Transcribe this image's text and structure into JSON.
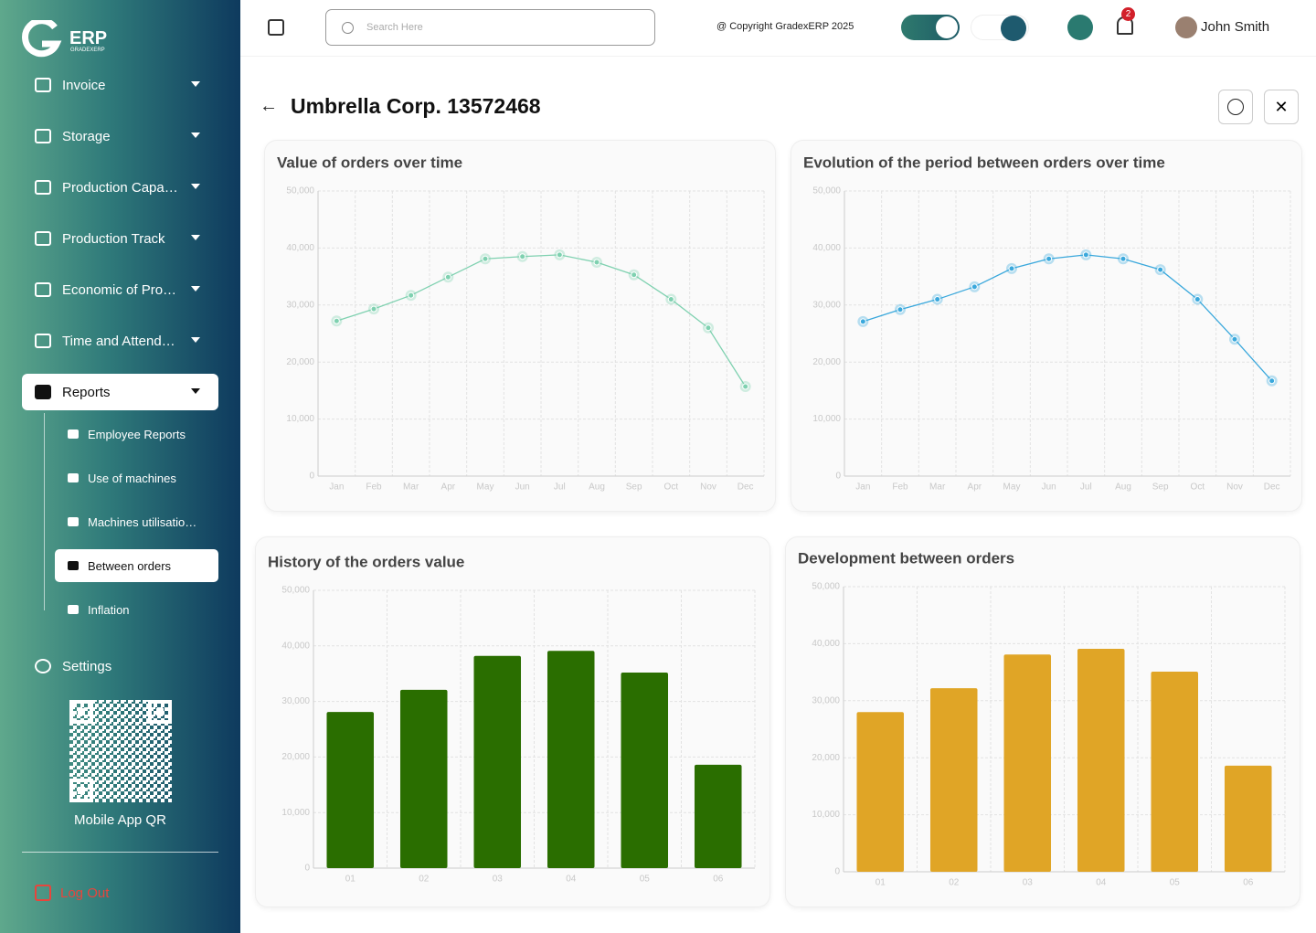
{
  "logo": {
    "name": "ERP",
    "subtitle": "GRADEXERP"
  },
  "sidebar": {
    "menu": [
      "Invoice",
      "Storage",
      "Production Capa…",
      "Production Track",
      "Economic of Pro…",
      "Time and Attend…",
      "Reports"
    ],
    "submenu": [
      "Employee Reports",
      "Use of machines",
      "Machines utilisatio…",
      "Between orders",
      "Inflation"
    ],
    "settings": "Settings",
    "qr_label": "Mobile App QR",
    "logout": "Log Out"
  },
  "header": {
    "search_placeholder": "Search Here",
    "copyright": "@ Copyright GradexERP 2025",
    "notifications": "2",
    "user": "John Smith"
  },
  "page": {
    "title": "Umbrella Corp. 13572468"
  },
  "chart_data": [
    {
      "type": "line",
      "title": "Value of orders over time",
      "categories": [
        "Jan",
        "Feb",
        "Mar",
        "Apr",
        "May",
        "Jun",
        "Jul",
        "Aug",
        "Sep",
        "Oct",
        "Nov",
        "Dec"
      ],
      "values": [
        27200,
        29300,
        31700,
        34900,
        38100,
        38500,
        38800,
        37500,
        35300,
        31000,
        26000,
        15700
      ],
      "color": "#7fd1b0",
      "ylim": [
        0,
        50000
      ],
      "yticks": [
        0,
        {
          "value": 10000,
          "label": "10,000"
        },
        {
          "value": 20000,
          "label": "20,000"
        },
        {
          "value": 30000,
          "label": "30,000"
        },
        {
          "value": 40000,
          "label": "40,000"
        },
        {
          "value": 50000,
          "label": "50,000"
        }
      ],
      "grid": true
    },
    {
      "type": "line",
      "title": "Evolution of the period between orders over time",
      "categories": [
        "Jan",
        "Feb",
        "Mar",
        "Apr",
        "May",
        "Jun",
        "Jul",
        "Aug",
        "Sep",
        "Oct",
        "Nov",
        "Dec"
      ],
      "values": [
        27100,
        29200,
        31000,
        33200,
        36400,
        38100,
        38800,
        38100,
        36200,
        31000,
        24000,
        16700
      ],
      "color": "#3aa8dc",
      "ylim": [
        0,
        50000
      ],
      "yticks": [
        0,
        {
          "value": 10000,
          "label": "10,000"
        },
        {
          "value": 20000,
          "label": "20,000"
        },
        {
          "value": 30000,
          "label": "30,000"
        },
        {
          "value": 40000,
          "label": "40,000"
        },
        {
          "value": 50000,
          "label": "50,000"
        }
      ],
      "grid": true
    },
    {
      "type": "bar",
      "title": "History of the orders value",
      "categories": [
        "01",
        "02",
        "03",
        "04",
        "05",
        "06"
      ],
      "values": [
        28100,
        32100,
        38200,
        39100,
        35200,
        18600
      ],
      "color": "#2a6e00",
      "ylim": [
        0,
        50000
      ],
      "yticks": [
        0,
        {
          "value": 10000,
          "label": "10,000"
        },
        {
          "value": 20000,
          "label": "20,000"
        },
        {
          "value": 30000,
          "label": "30,000"
        },
        {
          "value": 40000,
          "label": "40,000"
        },
        {
          "value": 50000,
          "label": "50,000"
        }
      ],
      "grid": true
    },
    {
      "type": "bar",
      "title": "Development between orders",
      "categories": [
        "01",
        "02",
        "03",
        "04",
        "05",
        "06"
      ],
      "values": [
        28000,
        32200,
        38100,
        39100,
        35100,
        18600
      ],
      "color": "#e0a526",
      "ylim": [
        0,
        50000
      ],
      "yticks": [
        0,
        {
          "value": 10000,
          "label": "10,000"
        },
        {
          "value": 20000,
          "label": "20,000"
        },
        {
          "value": 30000,
          "label": "30,000"
        },
        {
          "value": 40000,
          "label": "40,000"
        },
        {
          "value": 50000,
          "label": "50,000"
        }
      ],
      "grid": true
    }
  ]
}
